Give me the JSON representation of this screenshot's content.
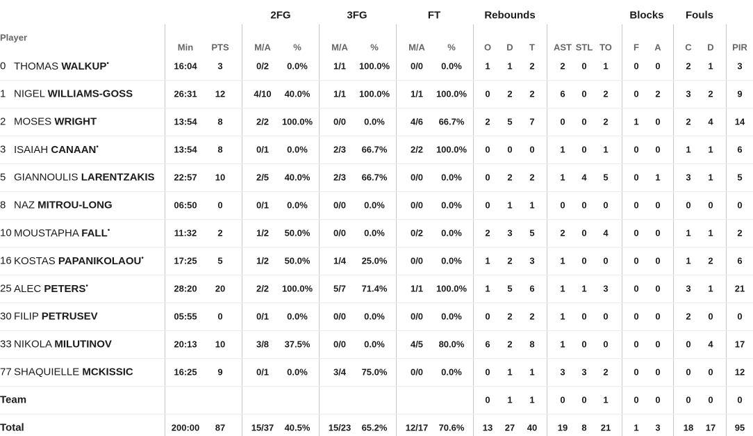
{
  "header": {
    "groups": [
      "2FG",
      "3FG",
      "FT",
      "Rebounds",
      "Blocks",
      "Fouls"
    ],
    "player": "Player",
    "columns": [
      "Min",
      "PTS",
      "M/A",
      "%",
      "M/A",
      "%",
      "M/A",
      "%",
      "O",
      "D",
      "T",
      "AST",
      "STL",
      "TO",
      "F",
      "A",
      "C",
      "D",
      "PIR"
    ]
  },
  "rows": [
    {
      "number": 0,
      "first": "THOMAS",
      "last": "WALKUP",
      "mark": "•",
      "cells": [
        "16:04",
        3,
        "0/2",
        "0.0%",
        "1/1",
        "100.0%",
        "0/0",
        "0.0%",
        1,
        1,
        2,
        2,
        0,
        1,
        0,
        0,
        2,
        1,
        3
      ]
    },
    {
      "number": 1,
      "first": "NIGEL",
      "last": "WILLIAMS-GOSS",
      "cells": [
        "26:31",
        12,
        "4/10",
        "40.0%",
        "1/1",
        "100.0%",
        "1/1",
        "100.0%",
        0,
        2,
        2,
        6,
        0,
        2,
        0,
        2,
        3,
        2,
        9
      ]
    },
    {
      "number": 2,
      "first": "MOSES",
      "last": "WRIGHT",
      "cells": [
        "13:54",
        8,
        "2/2",
        "100.0%",
        "0/0",
        "0.0%",
        "4/6",
        "66.7%",
        2,
        5,
        7,
        0,
        0,
        2,
        1,
        0,
        2,
        4,
        14
      ]
    },
    {
      "number": 3,
      "first": "ISAIAH",
      "last": "CANAAN",
      "mark": "•",
      "cells": [
        "13:54",
        8,
        "0/1",
        "0.0%",
        "2/3",
        "66.7%",
        "2/2",
        "100.0%",
        0,
        0,
        0,
        1,
        0,
        1,
        0,
        0,
        1,
        1,
        6
      ]
    },
    {
      "number": 5,
      "first": "GIANNOULIS",
      "last": "LARENTZAKIS",
      "cells": [
        "22:57",
        10,
        "2/5",
        "40.0%",
        "2/3",
        "66.7%",
        "0/0",
        "0.0%",
        0,
        2,
        2,
        1,
        4,
        5,
        0,
        1,
        3,
        1,
        5
      ]
    },
    {
      "number": 8,
      "first": "NAZ",
      "last": "MITROU-LONG",
      "cells": [
        "06:50",
        0,
        "0/1",
        "0.0%",
        "0/0",
        "0.0%",
        "0/0",
        "0.0%",
        0,
        1,
        1,
        0,
        0,
        0,
        0,
        0,
        0,
        0,
        0
      ]
    },
    {
      "number": 10,
      "first": "MOUSTAPHA",
      "last": "FALL",
      "mark": "•",
      "cells": [
        "11:32",
        2,
        "1/2",
        "50.0%",
        "0/0",
        "0.0%",
        "0/2",
        "0.0%",
        2,
        3,
        5,
        2,
        0,
        4,
        0,
        0,
        1,
        1,
        2
      ]
    },
    {
      "number": 16,
      "first": "KOSTAS",
      "last": "PAPANIKOLAOU",
      "mark": "•",
      "cells": [
        "17:25",
        5,
        "1/2",
        "50.0%",
        "1/4",
        "25.0%",
        "0/0",
        "0.0%",
        1,
        2,
        3,
        1,
        0,
        0,
        0,
        0,
        1,
        2,
        6
      ]
    },
    {
      "number": 25,
      "first": "ALEC",
      "last": "PETERS",
      "mark": "•",
      "cells": [
        "28:20",
        20,
        "2/2",
        "100.0%",
        "5/7",
        "71.4%",
        "1/1",
        "100.0%",
        1,
        5,
        6,
        1,
        1,
        3,
        0,
        0,
        3,
        1,
        21
      ]
    },
    {
      "number": 30,
      "first": "FILIP",
      "last": "PETRUSEV",
      "cells": [
        "05:55",
        0,
        "0/1",
        "0.0%",
        "0/0",
        "0.0%",
        "0/0",
        "0.0%",
        0,
        2,
        2,
        1,
        0,
        0,
        0,
        0,
        2,
        0,
        0
      ]
    },
    {
      "number": 33,
      "first": "NIKOLA",
      "last": "MILUTINOV",
      "cells": [
        "20:13",
        10,
        "3/8",
        "37.5%",
        "0/0",
        "0.0%",
        "4/5",
        "80.0%",
        6,
        2,
        8,
        1,
        0,
        0,
        0,
        0,
        0,
        4,
        17
      ]
    },
    {
      "number": 77,
      "first": "SHAQUIELLE",
      "last": "MCKISSIC",
      "cells": [
        "16:25",
        9,
        "0/1",
        "0.0%",
        "3/4",
        "75.0%",
        "0/0",
        "0.0%",
        0,
        1,
        1,
        3,
        3,
        2,
        0,
        0,
        0,
        0,
        12
      ]
    }
  ],
  "team": {
    "label": "Team",
    "cells": [
      null,
      null,
      null,
      null,
      null,
      null,
      null,
      null,
      0,
      1,
      1,
      0,
      0,
      1,
      0,
      0,
      0,
      0,
      0
    ]
  },
  "total": {
    "label": "Total",
    "cells": [
      "200:00",
      87,
      "15/37",
      "40.5%",
      "15/23",
      "65.2%",
      "12/17",
      "70.6%",
      13,
      27,
      40,
      19,
      8,
      21,
      1,
      3,
      18,
      17,
      95
    ]
  }
}
